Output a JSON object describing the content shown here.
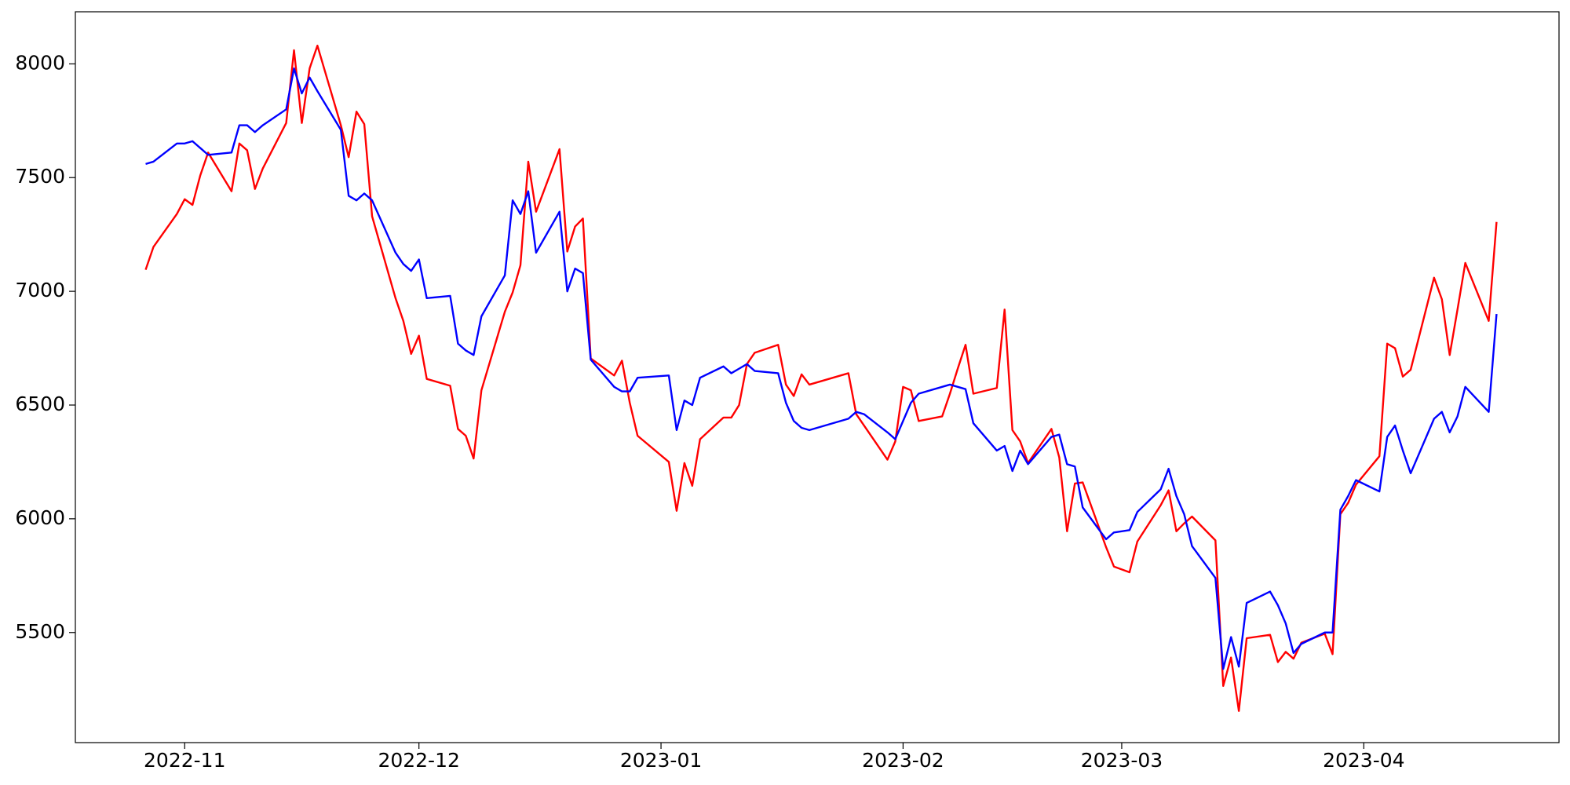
{
  "chart_data": {
    "type": "line",
    "x": [
      "2022-10-27",
      "2022-10-28",
      "2022-10-31",
      "2022-11-01",
      "2022-11-02",
      "2022-11-03",
      "2022-11-04",
      "2022-11-07",
      "2022-11-08",
      "2022-11-09",
      "2022-11-10",
      "2022-11-11",
      "2022-11-14",
      "2022-11-15",
      "2022-11-16",
      "2022-11-17",
      "2022-11-18",
      "2022-11-21",
      "2022-11-22",
      "2022-11-23",
      "2022-11-24",
      "2022-11-25",
      "2022-11-28",
      "2022-11-29",
      "2022-11-30",
      "2022-12-01",
      "2022-12-02",
      "2022-12-05",
      "2022-12-06",
      "2022-12-07",
      "2022-12-08",
      "2022-12-09",
      "2022-12-12",
      "2022-12-13",
      "2022-12-14",
      "2022-12-15",
      "2022-12-16",
      "2022-12-19",
      "2022-12-20",
      "2022-12-21",
      "2022-12-22",
      "2022-12-23",
      "2022-12-26",
      "2022-12-27",
      "2022-12-28",
      "2022-12-29",
      "2023-01-02",
      "2023-01-03",
      "2023-01-04",
      "2023-01-05",
      "2023-01-06",
      "2023-01-09",
      "2023-01-10",
      "2023-01-11",
      "2023-01-12",
      "2023-01-13",
      "2023-01-16",
      "2023-01-17",
      "2023-01-18",
      "2023-01-19",
      "2023-01-20",
      "2023-01-25",
      "2023-01-26",
      "2023-01-27",
      "2023-01-30",
      "2023-01-31",
      "2023-02-01",
      "2023-02-02",
      "2023-02-03",
      "2023-02-06",
      "2023-02-07",
      "2023-02-08",
      "2023-02-09",
      "2023-02-10",
      "2023-02-13",
      "2023-02-14",
      "2023-02-15",
      "2023-02-16",
      "2023-02-17",
      "2023-02-20",
      "2023-02-21",
      "2023-02-22",
      "2023-02-23",
      "2023-02-24",
      "2023-02-27",
      "2023-02-28",
      "2023-03-02",
      "2023-03-03",
      "2023-03-06",
      "2023-03-07",
      "2023-03-08",
      "2023-03-09",
      "2023-03-10",
      "2023-03-13",
      "2023-03-14",
      "2023-03-15",
      "2023-03-16",
      "2023-03-17",
      "2023-03-20",
      "2023-03-21",
      "2023-03-22",
      "2023-03-23",
      "2023-03-24",
      "2023-03-27",
      "2023-03-28",
      "2023-03-29",
      "2023-03-30",
      "2023-03-31",
      "2023-04-03",
      "2023-04-04",
      "2023-04-05",
      "2023-04-06",
      "2023-04-07",
      "2023-04-10",
      "2023-04-11",
      "2023-04-12",
      "2023-04-13",
      "2023-04-14",
      "2023-04-17",
      "2023-04-18"
    ],
    "series": [
      {
        "color": "#ff0000",
        "values": [
          7095,
          7195,
          7340,
          7405,
          7380,
          7510,
          7610,
          7440,
          7650,
          7620,
          7450,
          7540,
          7740,
          8060,
          7740,
          7980,
          8080,
          7730,
          7590,
          7790,
          7735,
          7330,
          6970,
          6870,
          6725,
          6805,
          6615,
          6585,
          6395,
          6365,
          6265,
          6565,
          6910,
          6995,
          7115,
          7570,
          7350,
          7625,
          7175,
          7285,
          7320,
          6705,
          6630,
          6695,
          6510,
          6365,
          6250,
          6035,
          6245,
          6145,
          6350,
          6445,
          6445,
          6500,
          6680,
          6730,
          6765,
          6590,
          6540,
          6635,
          6590,
          6640,
          6460,
          6410,
          6260,
          6340,
          6580,
          6565,
          6430,
          6450,
          6550,
          6660,
          6765,
          6550,
          6575,
          6920,
          6390,
          6340,
          6245,
          6395,
          6270,
          5945,
          6155,
          6160,
          5875,
          5790,
          5765,
          5900,
          6060,
          6125,
          5945,
          5980,
          6010,
          5905,
          5265,
          5390,
          5155,
          5475,
          5490,
          5370,
          5415,
          5385,
          5455,
          5495,
          5405,
          6020,
          6070,
          6150,
          6275,
          6770,
          6750,
          6625,
          6655,
          7060,
          6965,
          6720,
          6920,
          7125,
          6870,
          7305
        ]
      },
      {
        "color": "#0000ff",
        "values": [
          7560,
          7570,
          7650,
          7650,
          7660,
          7630,
          7600,
          7610,
          7730,
          7730,
          7700,
          7730,
          7800,
          7980,
          7870,
          7940,
          7880,
          7710,
          7420,
          7400,
          7430,
          7400,
          7170,
          7120,
          7090,
          7140,
          6970,
          6980,
          6770,
          6740,
          6720,
          6890,
          7070,
          7400,
          7340,
          7440,
          7170,
          7350,
          7000,
          7100,
          7080,
          6700,
          6580,
          6560,
          6560,
          6620,
          6630,
          6390,
          6520,
          6500,
          6620,
          6670,
          6640,
          6660,
          6680,
          6650,
          6640,
          6510,
          6430,
          6400,
          6390,
          6440,
          6470,
          6460,
          6380,
          6350,
          6430,
          6510,
          6550,
          6580,
          6590,
          6580,
          6570,
          6420,
          6300,
          6320,
          6210,
          6300,
          6240,
          6360,
          6370,
          6240,
          6230,
          6050,
          5910,
          5940,
          5950,
          6030,
          6130,
          6220,
          6100,
          6020,
          5880,
          5740,
          5340,
          5480,
          5350,
          5630,
          5680,
          5620,
          5540,
          5410,
          5450,
          5500,
          5500,
          6040,
          6100,
          6170,
          6120,
          6360,
          6410,
          6300,
          6200,
          6440,
          6470,
          6380,
          6450,
          6580,
          6470,
          6900
        ]
      }
    ],
    "xlim": [
      "2022-10-18",
      "2023-04-26"
    ],
    "xticks": [
      {
        "value": "2022-11-01",
        "label": "2022-11"
      },
      {
        "value": "2022-12-01",
        "label": "2022-12"
      },
      {
        "value": "2023-01-01",
        "label": "2023-01"
      },
      {
        "value": "2023-02-01",
        "label": "2023-02"
      },
      {
        "value": "2023-03-01",
        "label": "2023-03"
      },
      {
        "value": "2023-04-01",
        "label": "2023-04"
      }
    ],
    "ylim": [
      5016,
      8229
    ],
    "yticks": [
      5500,
      6000,
      6500,
      7000,
      7500,
      8000
    ]
  }
}
